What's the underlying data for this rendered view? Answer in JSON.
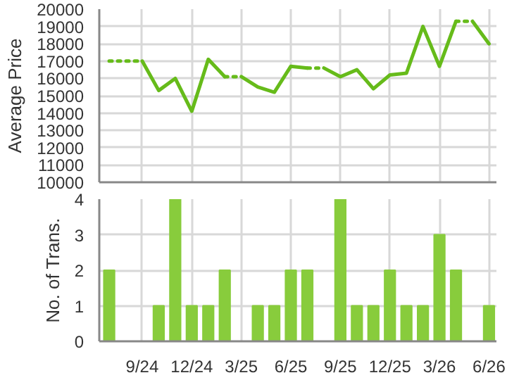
{
  "chart_data": [
    {
      "type": "line",
      "ylabel": "Average Price",
      "categories": [
        null,
        null,
        null,
        null,
        null,
        null,
        null,
        null,
        null,
        null,
        null,
        null,
        null,
        null,
        null,
        null,
        null,
        null,
        null,
        null,
        null,
        null,
        null,
        null
      ],
      "series": [
        {
          "color": "#66bb1a",
          "line_style": "dotted",
          "values": [
            17000,
            17000,
            17000,
            null,
            null,
            null,
            null,
            null,
            null,
            null,
            null,
            null,
            null,
            null,
            null,
            null,
            null,
            null,
            null,
            null,
            null,
            null,
            null,
            null
          ]
        },
        {
          "color": "#66bb1a",
          "line_style": "solid",
          "values": [
            null,
            null,
            17000,
            15300,
            16000,
            14100,
            17100,
            16100,
            null,
            null,
            null,
            null,
            null,
            null,
            null,
            null,
            null,
            null,
            null,
            null,
            null,
            null,
            null,
            null
          ]
        },
        {
          "color": "#66bb1a",
          "line_style": "dotted",
          "values": [
            null,
            null,
            null,
            null,
            null,
            null,
            null,
            16100,
            16100,
            null,
            null,
            null,
            null,
            null,
            null,
            null,
            null,
            null,
            null,
            null,
            null,
            null,
            null,
            null
          ]
        },
        {
          "color": "#66bb1a",
          "line_style": "solid",
          "values": [
            null,
            null,
            null,
            null,
            null,
            null,
            null,
            null,
            16100,
            15500,
            15200,
            16700,
            16600,
            null,
            null,
            null,
            null,
            null,
            null,
            null,
            null,
            null,
            null,
            null
          ]
        },
        {
          "color": "#66bb1a",
          "line_style": "dotted",
          "values": [
            null,
            null,
            null,
            null,
            null,
            null,
            null,
            null,
            null,
            null,
            null,
            null,
            16600,
            16600,
            null,
            null,
            null,
            null,
            null,
            null,
            null,
            null,
            null,
            null
          ]
        },
        {
          "color": "#66bb1a",
          "line_style": "solid",
          "values": [
            null,
            null,
            null,
            null,
            null,
            null,
            null,
            null,
            null,
            null,
            null,
            null,
            null,
            16600,
            16100,
            16500,
            15400,
            16200,
            16300,
            19000,
            16700,
            19300,
            null,
            null
          ]
        },
        {
          "color": "#66bb1a",
          "line_style": "dotted",
          "values": [
            null,
            null,
            null,
            null,
            null,
            null,
            null,
            null,
            null,
            null,
            null,
            null,
            null,
            null,
            null,
            null,
            null,
            null,
            null,
            null,
            null,
            19300,
            19300,
            null
          ]
        },
        {
          "color": "#66bb1a",
          "line_style": "solid",
          "values": [
            null,
            null,
            null,
            null,
            null,
            null,
            null,
            null,
            null,
            null,
            null,
            null,
            null,
            null,
            null,
            null,
            null,
            null,
            null,
            null,
            null,
            null,
            19300,
            18000
          ]
        }
      ],
      "ylim": [
        10000,
        20000
      ],
      "yticks": [
        10000,
        11000,
        12000,
        13000,
        14000,
        15000,
        16000,
        17000,
        18000,
        19000,
        20000
      ],
      "grid": true,
      "tick_labels": "y"
    },
    {
      "type": "bar",
      "ylabel": "No. of Trans.",
      "categories": [
        null,
        null,
        "9/24",
        null,
        null,
        "12/24",
        null,
        null,
        "3/25",
        null,
        null,
        "6/25",
        null,
        null,
        "9/25",
        null,
        null,
        "12/25",
        null,
        null,
        "3/26",
        null,
        null,
        "6/26"
      ],
      "values": [
        2,
        0,
        0,
        1,
        4,
        1,
        1,
        2,
        0,
        1,
        1,
        2,
        2,
        0,
        4,
        1,
        1,
        2,
        1,
        1,
        3,
        2,
        0,
        1
      ],
      "color": "#88cc3c",
      "ylim": [
        0,
        4
      ],
      "yticks": [
        0,
        1,
        2,
        3,
        4
      ],
      "grid": true
    }
  ]
}
